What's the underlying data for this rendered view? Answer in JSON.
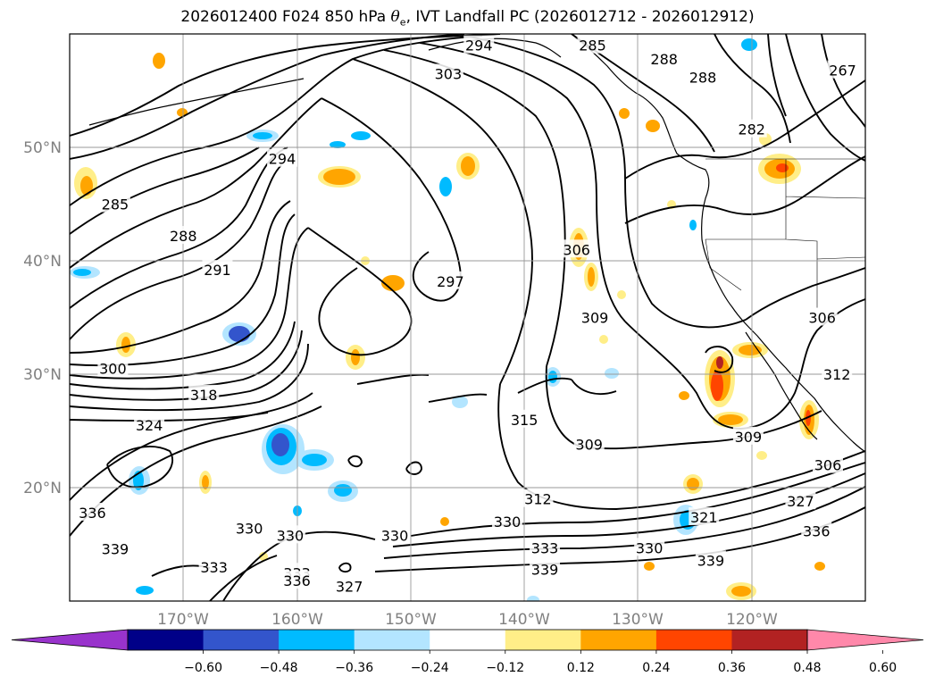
{
  "title": {
    "prefix": "2026012400 F024 850 hPa ",
    "theta_symbol": "θ",
    "theta_sub": "e",
    "suffix": ", IVT Landfall PC (2026012712 - 2026012912)"
  },
  "axes": {
    "lon_ticks": [
      "170°W",
      "160°W",
      "150°W",
      "140°W",
      "130°W",
      "120°W"
    ],
    "lat_ticks": [
      "50°N",
      "40°N",
      "30°N",
      "20°N"
    ],
    "extent": {
      "lon": [
        -180,
        -110
      ],
      "lat": [
        10,
        60
      ]
    },
    "grid": true
  },
  "colorbar": {
    "ticks": [
      "−0.60",
      "−0.48",
      "−0.36",
      "−0.24",
      "−0.12",
      "0.12",
      "0.24",
      "0.36",
      "0.48",
      "0.60"
    ],
    "colors": [
      "#9933cc",
      "#000088",
      "#3355cc",
      "#00bbff",
      "#b3e5ff",
      "#ffffff",
      "#ffee88",
      "#ffa500",
      "#ff4500",
      "#b22222",
      "#ff88aa"
    ]
  },
  "chart_data": {
    "type": "contour",
    "contour_levels": [
      267,
      270,
      273,
      276,
      279,
      282,
      285,
      288,
      291,
      294,
      297,
      300,
      303,
      306,
      309,
      312,
      315,
      318,
      321,
      324,
      327,
      330,
      333,
      336,
      339
    ],
    "contour_labels": [
      {
        "text": "294",
        "lon": -144,
        "lat": 59
      },
      {
        "text": "285",
        "lon": -134,
        "lat": 59
      },
      {
        "text": "303",
        "lon": -146.7,
        "lat": 56.5
      },
      {
        "text": "288",
        "lon": -127.7,
        "lat": 57.8
      },
      {
        "text": "288",
        "lon": -124.3,
        "lat": 56.2
      },
      {
        "text": "294",
        "lon": -161.3,
        "lat": 49
      },
      {
        "text": "285",
        "lon": -176,
        "lat": 45
      },
      {
        "text": "288",
        "lon": -170,
        "lat": 42.2
      },
      {
        "text": "291",
        "lon": -167,
        "lat": 39.2
      },
      {
        "text": "297",
        "lon": -146.5,
        "lat": 38.2
      },
      {
        "text": "306",
        "lon": -135.4,
        "lat": 41
      },
      {
        "text": "309",
        "lon": -133.8,
        "lat": 35
      },
      {
        "text": "306",
        "lon": -113.8,
        "lat": 35
      },
      {
        "text": "312",
        "lon": -112.5,
        "lat": 30
      },
      {
        "text": "300",
        "lon": -176.2,
        "lat": 30.5
      },
      {
        "text": "318",
        "lon": -168.2,
        "lat": 28.2
      },
      {
        "text": "324",
        "lon": -173,
        "lat": 25.5
      },
      {
        "text": "315",
        "lon": -140,
        "lat": 26
      },
      {
        "text": "309",
        "lon": -134.3,
        "lat": 23.8
      },
      {
        "text": "309",
        "lon": -120.3,
        "lat": 24.5
      },
      {
        "text": "306",
        "lon": -113.3,
        "lat": 22
      },
      {
        "text": "312",
        "lon": -138.8,
        "lat": 19
      },
      {
        "text": "321",
        "lon": -124.2,
        "lat": 17.4
      },
      {
        "text": "327",
        "lon": -115.7,
        "lat": 18.8
      },
      {
        "text": "336",
        "lon": -178,
        "lat": 17.8
      },
      {
        "text": "339",
        "lon": -176,
        "lat": 14.6
      },
      {
        "text": "330",
        "lon": -164.2,
        "lat": 16.4
      },
      {
        "text": "330",
        "lon": -160.6,
        "lat": 15.8
      },
      {
        "text": "330",
        "lon": -151.4,
        "lat": 15.8
      },
      {
        "text": "330",
        "lon": -141.5,
        "lat": 17
      },
      {
        "text": "333",
        "lon": -138.2,
        "lat": 14.7
      },
      {
        "text": "330",
        "lon": -129,
        "lat": 14.7
      },
      {
        "text": "339",
        "lon": -138.2,
        "lat": 12.8
      },
      {
        "text": "339",
        "lon": -123.6,
        "lat": 13.6
      },
      {
        "text": "336",
        "lon": -114.3,
        "lat": 16.2
      },
      {
        "text": "333",
        "lon": -167.3,
        "lat": 13
      },
      {
        "text": "333",
        "lon": -160,
        "lat": 12.5
      },
      {
        "text": "336",
        "lon": -160,
        "lat": 11.8
      },
      {
        "text": "327",
        "lon": -155.4,
        "lat": 11.3
      },
      {
        "text": "282",
        "lon": -120,
        "lat": 51.6
      },
      {
        "text": "267",
        "lon": -112,
        "lat": 56.8
      }
    ]
  }
}
